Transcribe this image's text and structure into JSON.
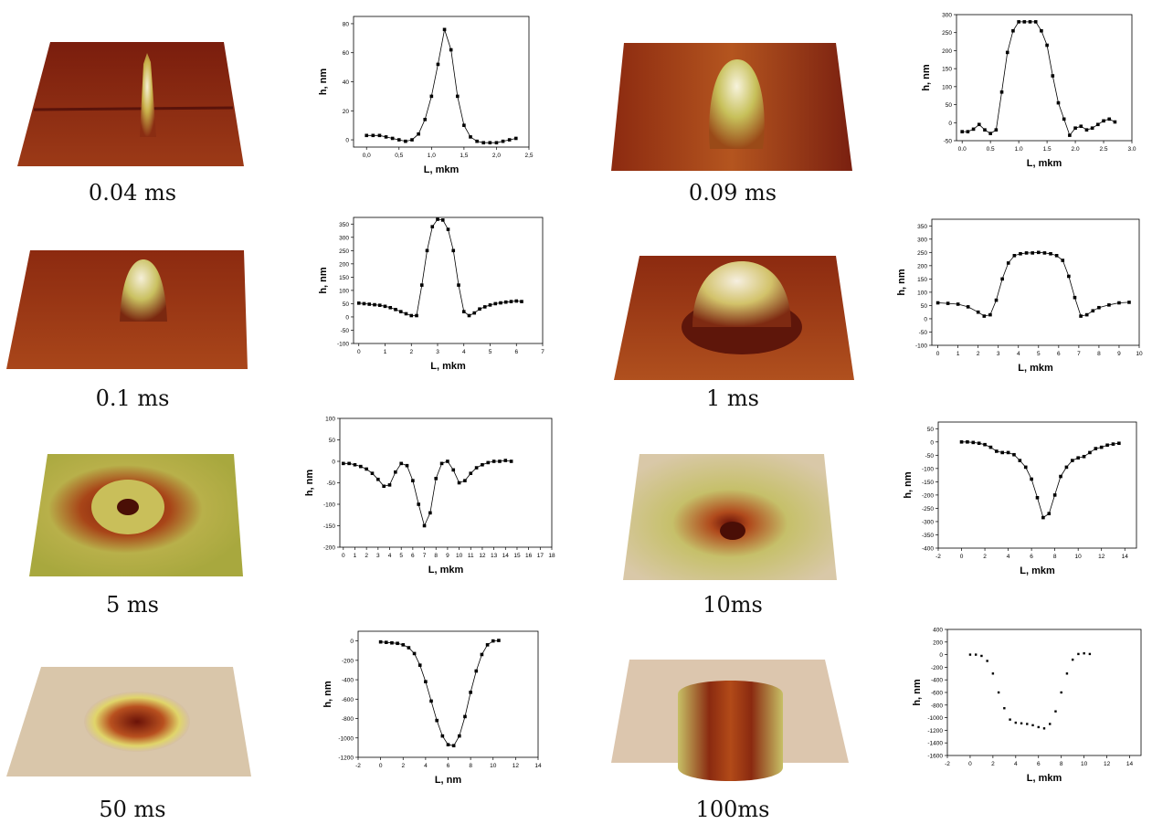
{
  "chart_data": [
    {
      "type": "scatter",
      "caption": "0.04 ms",
      "xlabel": "L, mkm",
      "ylabel": "h, nm",
      "xlim": [
        -0.2,
        2.5
      ],
      "ylim": [
        -5,
        85
      ],
      "xticks": [
        "0,0",
        "0,5",
        "1,0",
        "1,5",
        "2,0",
        "2,5"
      ],
      "xtick_values": [
        0,
        0.5,
        1.0,
        1.5,
        2.0,
        2.5
      ],
      "yticks": [
        0,
        20,
        40,
        60,
        80
      ],
      "fit_line": true,
      "x": [
        0.0,
        0.1,
        0.2,
        0.3,
        0.4,
        0.5,
        0.6,
        0.7,
        0.8,
        0.9,
        1.0,
        1.1,
        1.2,
        1.3,
        1.4,
        1.5,
        1.6,
        1.7,
        1.8,
        1.9,
        2.0,
        2.1,
        2.2,
        2.3
      ],
      "y": [
        3,
        3,
        3,
        2,
        1,
        0,
        -1,
        0,
        4,
        14,
        30,
        52,
        76,
        62,
        30,
        10,
        2,
        -1,
        -2,
        -2,
        -2,
        -1,
        0,
        1
      ]
    },
    {
      "type": "line",
      "caption": "0.09 ms",
      "xlabel": "L, mkm",
      "ylabel": "h, nm",
      "xlim": [
        -0.1,
        3.0
      ],
      "ylim": [
        -50,
        300
      ],
      "xticks": [
        "0.0",
        "0.5",
        "1.0",
        "1.5",
        "2.0",
        "2.5",
        "3.0"
      ],
      "xtick_values": [
        0,
        0.5,
        1.0,
        1.5,
        2.0,
        2.5,
        3.0
      ],
      "yticks": [
        -50,
        0,
        50,
        100,
        150,
        200,
        250,
        300
      ],
      "x": [
        0.0,
        0.1,
        0.2,
        0.3,
        0.4,
        0.5,
        0.6,
        0.7,
        0.8,
        0.9,
        1.0,
        1.1,
        1.2,
        1.3,
        1.4,
        1.5,
        1.6,
        1.7,
        1.8,
        1.9,
        2.0,
        2.1,
        2.2,
        2.3,
        2.4,
        2.5,
        2.6,
        2.7
      ],
      "y": [
        -25,
        -25,
        -18,
        -5,
        -20,
        -30,
        -20,
        85,
        195,
        255,
        280,
        280,
        280,
        280,
        255,
        215,
        130,
        55,
        10,
        -35,
        -15,
        -10,
        -20,
        -15,
        -5,
        5,
        10,
        2
      ]
    },
    {
      "type": "line",
      "caption": "0.1 ms",
      "xlabel": "L, mkm",
      "ylabel": "h, nm",
      "xlim": [
        -0.2,
        7
      ],
      "ylim": [
        -100,
        375
      ],
      "xticks": [
        "0",
        "1",
        "2",
        "3",
        "4",
        "5",
        "6",
        "7"
      ],
      "xtick_values": [
        0,
        1,
        2,
        3,
        4,
        5,
        6,
        7
      ],
      "yticks": [
        -100,
        -50,
        0,
        50,
        100,
        150,
        200,
        250,
        300,
        350
      ],
      "x": [
        0.0,
        0.2,
        0.4,
        0.6,
        0.8,
        1.0,
        1.2,
        1.4,
        1.6,
        1.8,
        2.0,
        2.2,
        2.4,
        2.6,
        2.8,
        3.0,
        3.2,
        3.4,
        3.6,
        3.8,
        4.0,
        4.2,
        4.4,
        4.6,
        4.8,
        5.0,
        5.2,
        5.4,
        5.6,
        5.8,
        6.0,
        6.2
      ],
      "y": [
        52,
        50,
        48,
        46,
        44,
        40,
        35,
        28,
        20,
        12,
        5,
        5,
        120,
        250,
        340,
        368,
        365,
        330,
        250,
        120,
        20,
        5,
        15,
        30,
        38,
        45,
        50,
        53,
        56,
        58,
        60,
        58
      ]
    },
    {
      "type": "line",
      "caption": "1 ms",
      "xlabel": "L, mkm",
      "ylabel": "h, nm",
      "xlim": [
        -0.3,
        10
      ],
      "ylim": [
        -100,
        375
      ],
      "xticks": [
        "0",
        "1",
        "2",
        "3",
        "4",
        "5",
        "6",
        "7",
        "8",
        "9",
        "10"
      ],
      "xtick_values": [
        0,
        1,
        2,
        3,
        4,
        5,
        6,
        7,
        8,
        9,
        10
      ],
      "yticks": [
        -100,
        -50,
        0,
        50,
        100,
        150,
        200,
        250,
        300,
        350
      ],
      "x": [
        0.0,
        0.5,
        1.0,
        1.5,
        2.0,
        2.3,
        2.6,
        2.9,
        3.2,
        3.5,
        3.8,
        4.1,
        4.4,
        4.7,
        5.0,
        5.3,
        5.6,
        5.9,
        6.2,
        6.5,
        6.8,
        7.1,
        7.4,
        7.7,
        8.0,
        8.5,
        9.0,
        9.5
      ],
      "y": [
        60,
        58,
        55,
        45,
        25,
        10,
        15,
        70,
        150,
        210,
        238,
        245,
        248,
        248,
        250,
        248,
        245,
        238,
        220,
        160,
        80,
        10,
        15,
        30,
        42,
        52,
        60,
        62
      ]
    },
    {
      "type": "line",
      "caption": "5 ms",
      "xlabel": "L, mkm",
      "ylabel": "h, nm",
      "xlim": [
        -0.3,
        18
      ],
      "ylim": [
        -200,
        100
      ],
      "xticks": [
        "0",
        "1",
        "2",
        "3",
        "4",
        "5",
        "6",
        "7",
        "8",
        "9",
        "10",
        "11",
        "12",
        "13",
        "14",
        "15",
        "16",
        "17",
        "18"
      ],
      "xtick_values": [
        0,
        1,
        2,
        3,
        4,
        5,
        6,
        7,
        8,
        9,
        10,
        11,
        12,
        13,
        14,
        15,
        16,
        17,
        18
      ],
      "yticks": [
        -200,
        -150,
        -100,
        -50,
        0,
        50,
        100
      ],
      "x": [
        0.0,
        0.5,
        1.0,
        1.5,
        2.0,
        2.5,
        3.0,
        3.5,
        4.0,
        4.5,
        5.0,
        5.5,
        6.0,
        6.5,
        7.0,
        7.5,
        8.0,
        8.5,
        9.0,
        9.5,
        10.0,
        10.5,
        11.0,
        11.5,
        12.0,
        12.5,
        13.0,
        13.5,
        14.0,
        14.5
      ],
      "y": [
        -5,
        -5,
        -8,
        -12,
        -18,
        -28,
        -42,
        -58,
        -55,
        -25,
        -5,
        -10,
        -45,
        -100,
        -150,
        -120,
        -40,
        -5,
        0,
        -20,
        -50,
        -45,
        -28,
        -15,
        -8,
        -3,
        0,
        0,
        2,
        0
      ]
    },
    {
      "type": "line",
      "caption": "10ms",
      "xlabel": "L, mkm",
      "ylabel": "h, nm",
      "xlim": [
        -2,
        15
      ],
      "ylim": [
        -400,
        75
      ],
      "xticks": [
        "-2",
        "0",
        "2",
        "4",
        "6",
        "8",
        "10",
        "12",
        "14"
      ],
      "xtick_values": [
        -2,
        0,
        2,
        4,
        6,
        8,
        10,
        12,
        14
      ],
      "yticks": [
        -400,
        -350,
        -300,
        -250,
        -200,
        -150,
        -100,
        -50,
        0,
        50
      ],
      "x": [
        0.0,
        0.5,
        1.0,
        1.5,
        2.0,
        2.5,
        3.0,
        3.5,
        4.0,
        4.5,
        5.0,
        5.5,
        6.0,
        6.5,
        7.0,
        7.5,
        8.0,
        8.5,
        9.0,
        9.5,
        10.0,
        10.5,
        11.0,
        11.5,
        12.0,
        12.5,
        13.0,
        13.5
      ],
      "y": [
        0,
        0,
        -2,
        -5,
        -10,
        -20,
        -35,
        -40,
        -40,
        -48,
        -70,
        -95,
        -140,
        -210,
        -285,
        -270,
        -200,
        -130,
        -95,
        -70,
        -60,
        -55,
        -40,
        -25,
        -20,
        -12,
        -8,
        -5
      ]
    },
    {
      "type": "line",
      "caption": "50 ms",
      "xlabel": "L, nm",
      "ylabel": "h, nm",
      "xlim": [
        -2,
        14
      ],
      "ylim": [
        -1200,
        100
      ],
      "xticks": [
        "-2",
        "0",
        "2",
        "4",
        "6",
        "8",
        "10",
        "12",
        "14"
      ],
      "xtick_values": [
        -2,
        0,
        2,
        4,
        6,
        8,
        10,
        12,
        14
      ],
      "yticks": [
        -1200,
        -1000,
        -800,
        -600,
        -400,
        -200,
        0
      ],
      "x": [
        0.0,
        0.5,
        1.0,
        1.5,
        2.0,
        2.5,
        3.0,
        3.5,
        4.0,
        4.5,
        5.0,
        5.5,
        6.0,
        6.5,
        7.0,
        7.5,
        8.0,
        8.5,
        9.0,
        9.5,
        10.0,
        10.5
      ],
      "y": [
        -10,
        -15,
        -20,
        -25,
        -40,
        -70,
        -130,
        -250,
        -420,
        -620,
        -820,
        -980,
        -1070,
        -1080,
        -980,
        -780,
        -530,
        -310,
        -140,
        -40,
        0,
        5
      ]
    },
    {
      "type": "scatter",
      "caption": "100ms",
      "xlabel": "L, mkm",
      "ylabel": "h, nm",
      "xlim": [
        -2,
        15
      ],
      "ylim": [
        -1600,
        400
      ],
      "xticks": [
        "-2",
        "0",
        "2",
        "4",
        "6",
        "8",
        "10",
        "12",
        "14"
      ],
      "xtick_values": [
        -2,
        0,
        2,
        4,
        6,
        8,
        10,
        12,
        14
      ],
      "yticks": [
        -1600,
        -1400,
        -1200,
        -1000,
        -800,
        -600,
        -400,
        -200,
        0,
        200,
        400
      ],
      "x": [
        0.0,
        0.5,
        1.0,
        1.5,
        2.0,
        2.5,
        3.0,
        3.5,
        4.0,
        4.5,
        5.0,
        5.5,
        6.0,
        6.5,
        7.0,
        7.5,
        8.0,
        8.5,
        9.0,
        9.5,
        10.0,
        10.5
      ],
      "y": [
        0,
        0,
        -20,
        -100,
        -300,
        -600,
        -850,
        -1030,
        -1080,
        -1090,
        -1100,
        -1120,
        -1150,
        -1170,
        -1100,
        -900,
        -600,
        -300,
        -80,
        10,
        20,
        10
      ]
    }
  ]
}
